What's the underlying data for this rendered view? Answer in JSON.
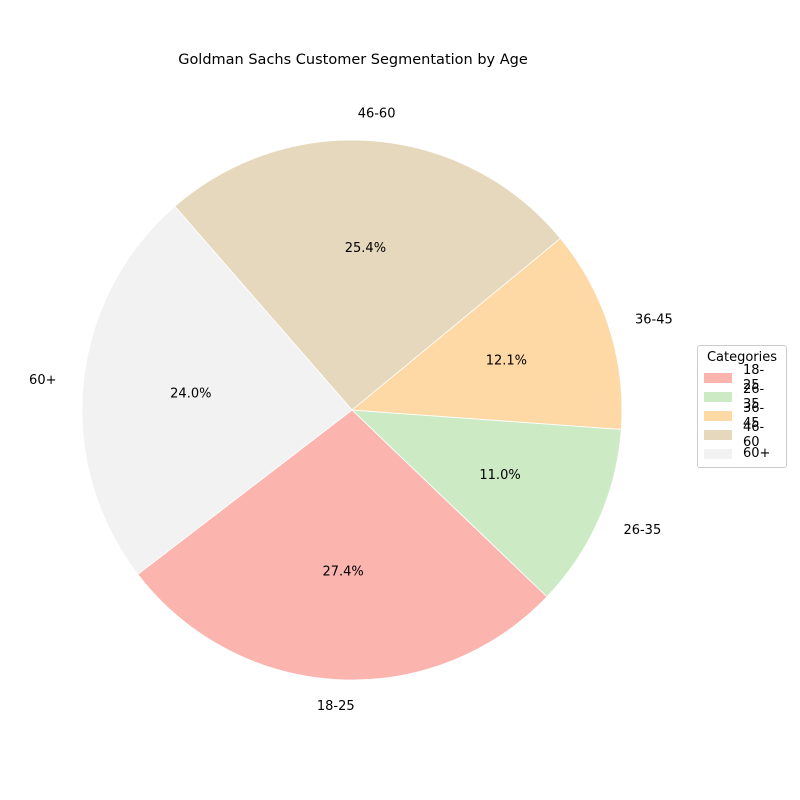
{
  "chart_data": {
    "type": "pie",
    "title": "Goldman Sachs Customer Segmentation by Age",
    "categories": [
      "18-25",
      "26-35",
      "36-45",
      "46-60",
      "60+"
    ],
    "values": [
      27.4,
      11.0,
      12.1,
      25.4,
      24.0
    ],
    "value_labels": [
      "27.4%",
      "11.0%",
      "12.1%",
      "25.4%",
      "24.0%"
    ],
    "colors": [
      "#fbb4ae",
      "#ccebc5",
      "#fed9a6",
      "#e5d8bd",
      "#f2f2f2"
    ],
    "legend": {
      "title": "Categories",
      "placement": "right",
      "entries": [
        "18-25",
        "26-35",
        "36-45",
        "46-60",
        "60+"
      ]
    }
  }
}
